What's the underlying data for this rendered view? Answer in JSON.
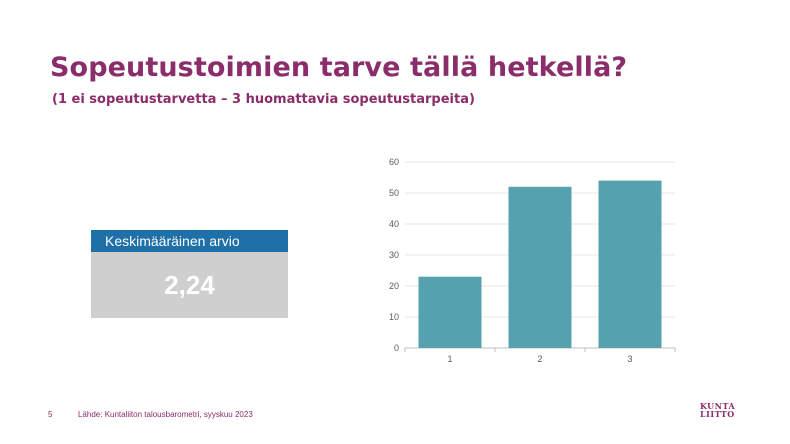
{
  "title": "Sopeutustoimien tarve tällä hetkellä?",
  "subtitle": "(1 ei sopeutustarvetta – 3 huomattavia sopeutustarpeita)",
  "kpi": {
    "label": "Keskimääräinen arvio",
    "value": "2,24"
  },
  "chart_data": {
    "type": "bar",
    "categories": [
      "1",
      "2",
      "3"
    ],
    "values": [
      23,
      52,
      54
    ],
    "ylim": [
      0,
      60
    ],
    "yticks": [
      0,
      10,
      20,
      30,
      40,
      50,
      60
    ],
    "grid": true,
    "bar_color": "#55a1ae"
  },
  "footer": {
    "page_number": "5",
    "source": "Lähde: Kuntaliiton talousbarometri, syyskuu 2023"
  },
  "logo": {
    "line1": "KUNTA",
    "line2": "LIITTO"
  },
  "colors": {
    "brand": "#8b2d6a",
    "kpi_header": "#1f6fa8",
    "kpi_body": "#cfcfcf"
  }
}
